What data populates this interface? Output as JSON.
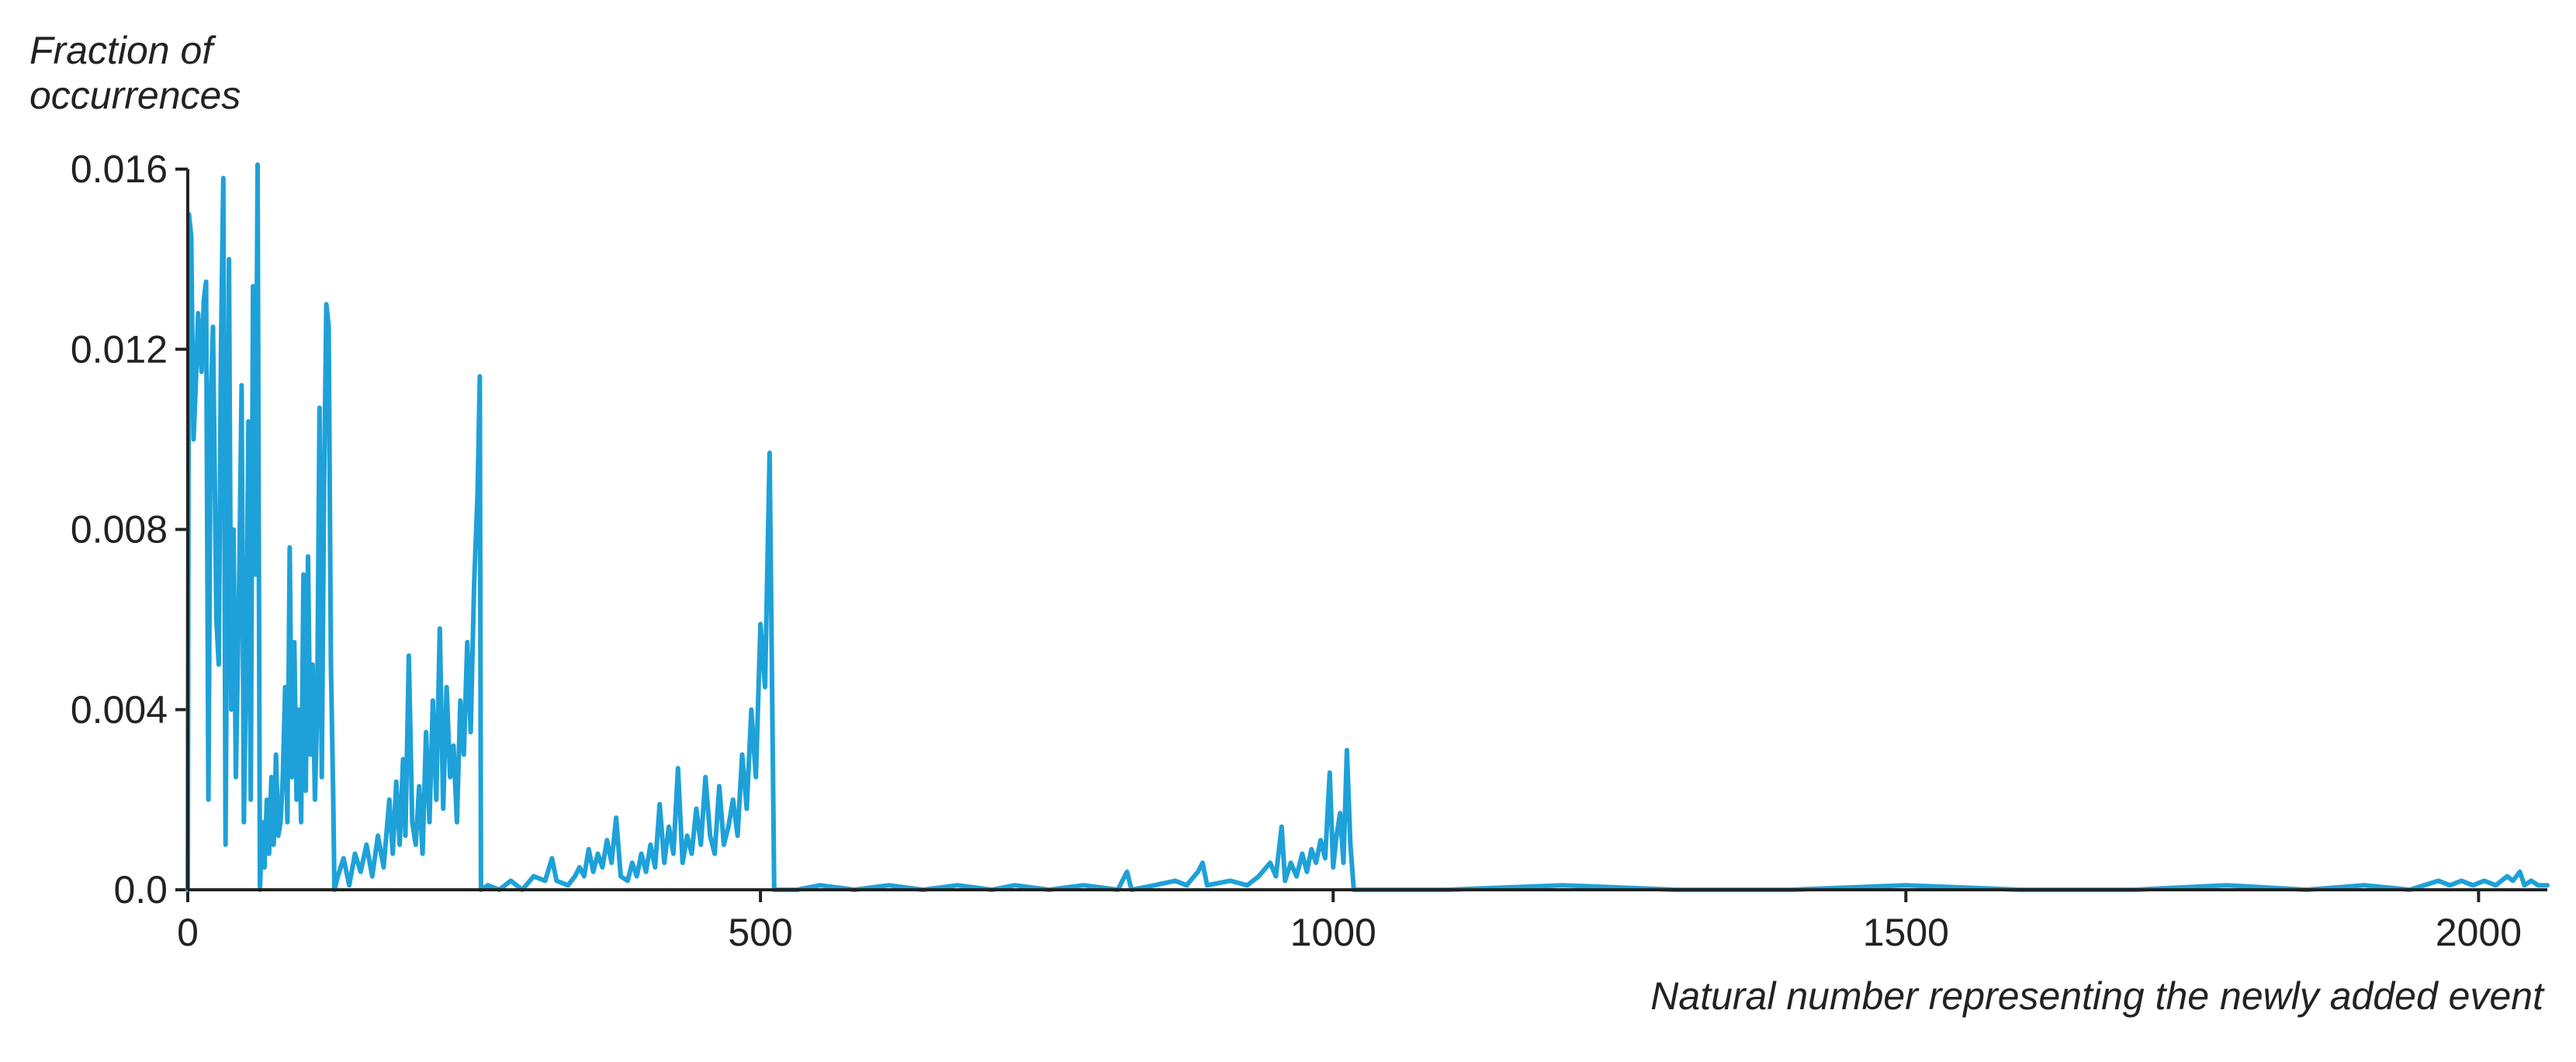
{
  "chart_data": {
    "type": "line",
    "title": "",
    "ylabel_lines": [
      "Fraction of",
      "occurrences"
    ],
    "xlabel": "Natural number representing the newly added event",
    "xlim": [
      0,
      2060
    ],
    "ylim": [
      0,
      0.016
    ],
    "xticks": [
      0,
      500,
      1000,
      1500,
      2000
    ],
    "xtick_labels": [
      "0",
      "500",
      "1000",
      "1500",
      "2000"
    ],
    "yticks": [
      0,
      0.004,
      0.008,
      0.012,
      0.016
    ],
    "ytick_labels": [
      "0.0",
      "0.004",
      "0.008",
      "0.012",
      "0.016"
    ],
    "grid": false,
    "legend": "none",
    "colors": {
      "series": "#1ea1d8",
      "axis": "#222222"
    },
    "series": [
      {
        "name": "",
        "points": [
          [
            0,
            0.0
          ],
          [
            1,
            0.015
          ],
          [
            3,
            0.0145
          ],
          [
            5,
            0.01
          ],
          [
            7,
            0.0112
          ],
          [
            9,
            0.0128
          ],
          [
            12,
            0.0115
          ],
          [
            14,
            0.0131
          ],
          [
            16,
            0.0135
          ],
          [
            18,
            0.002
          ],
          [
            20,
            0.0108
          ],
          [
            22,
            0.0125
          ],
          [
            25,
            0.006
          ],
          [
            27,
            0.005
          ],
          [
            29,
            0.012
          ],
          [
            31,
            0.0158
          ],
          [
            33,
            0.001
          ],
          [
            36,
            0.014
          ],
          [
            38,
            0.004
          ],
          [
            40,
            0.008
          ],
          [
            42,
            0.0025
          ],
          [
            45,
            0.007
          ],
          [
            47,
            0.0112
          ],
          [
            49,
            0.0015
          ],
          [
            51,
            0.005
          ],
          [
            53,
            0.0104
          ],
          [
            55,
            0.002
          ],
          [
            57,
            0.0134
          ],
          [
            59,
            0.007
          ],
          [
            61,
            0.0161
          ],
          [
            63,
            0.0
          ],
          [
            65,
            0.0015
          ],
          [
            67,
            0.0005
          ],
          [
            69,
            0.002
          ],
          [
            71,
            0.0008
          ],
          [
            73,
            0.0025
          ],
          [
            75,
            0.001
          ],
          [
            77,
            0.003
          ],
          [
            79,
            0.0012
          ],
          [
            81,
            0.0015
          ],
          [
            83,
            0.0025
          ],
          [
            85,
            0.0045
          ],
          [
            87,
            0.0015
          ],
          [
            89,
            0.0076
          ],
          [
            91,
            0.0025
          ],
          [
            93,
            0.0055
          ],
          [
            95,
            0.002
          ],
          [
            97,
            0.004
          ],
          [
            99,
            0.0015
          ],
          [
            101,
            0.007
          ],
          [
            103,
            0.0022
          ],
          [
            105,
            0.0074
          ],
          [
            107,
            0.003
          ],
          [
            109,
            0.005
          ],
          [
            111,
            0.002
          ],
          [
            113,
            0.004
          ],
          [
            115,
            0.0107
          ],
          [
            117,
            0.0025
          ],
          [
            119,
            0.009
          ],
          [
            121,
            0.013
          ],
          [
            123,
            0.0125
          ],
          [
            125,
            0.005
          ],
          [
            127,
            0.002
          ],
          [
            128,
            0.0
          ],
          [
            131,
            0.0003
          ],
          [
            136,
            0.0007
          ],
          [
            141,
            0.0001
          ],
          [
            146,
            0.0008
          ],
          [
            151,
            0.0004
          ],
          [
            156,
            0.001
          ],
          [
            161,
            0.0003
          ],
          [
            166,
            0.0012
          ],
          [
            171,
            0.0005
          ],
          [
            176,
            0.002
          ],
          [
            179,
            0.0008
          ],
          [
            182,
            0.0024
          ],
          [
            185,
            0.001
          ],
          [
            188,
            0.0029
          ],
          [
            190,
            0.0012
          ],
          [
            193,
            0.0052
          ],
          [
            196,
            0.0015
          ],
          [
            199,
            0.001
          ],
          [
            202,
            0.0023
          ],
          [
            205,
            0.0008
          ],
          [
            208,
            0.0035
          ],
          [
            211,
            0.0015
          ],
          [
            214,
            0.0042
          ],
          [
            217,
            0.002
          ],
          [
            220,
            0.0058
          ],
          [
            223,
            0.0018
          ],
          [
            226,
            0.0045
          ],
          [
            229,
            0.0025
          ],
          [
            232,
            0.0032
          ],
          [
            235,
            0.0015
          ],
          [
            238,
            0.0042
          ],
          [
            241,
            0.003
          ],
          [
            244,
            0.0055
          ],
          [
            247,
            0.0035
          ],
          [
            250,
            0.0068
          ],
          [
            253,
            0.0088
          ],
          [
            255,
            0.0114
          ],
          [
            256,
            0.0
          ],
          [
            262,
            0.0001
          ],
          [
            272,
            0.0
          ],
          [
            282,
            0.0002
          ],
          [
            292,
            0.0
          ],
          [
            302,
            0.0003
          ],
          [
            312,
            0.0002
          ],
          [
            318,
            0.0007
          ],
          [
            322,
            0.0002
          ],
          [
            332,
            0.0001
          ],
          [
            338,
            0.0003
          ],
          [
            342,
            0.0005
          ],
          [
            346,
            0.0003
          ],
          [
            350,
            0.0009
          ],
          [
            354,
            0.0004
          ],
          [
            358,
            0.0008
          ],
          [
            362,
            0.0005
          ],
          [
            366,
            0.0011
          ],
          [
            370,
            0.0006
          ],
          [
            374,
            0.0016
          ],
          [
            378,
            0.0003
          ],
          [
            384,
            0.0002
          ],
          [
            388,
            0.0006
          ],
          [
            392,
            0.0003
          ],
          [
            396,
            0.0008
          ],
          [
            400,
            0.0004
          ],
          [
            404,
            0.001
          ],
          [
            408,
            0.0005
          ],
          [
            412,
            0.0019
          ],
          [
            416,
            0.0006
          ],
          [
            420,
            0.0014
          ],
          [
            424,
            0.0008
          ],
          [
            428,
            0.0027
          ],
          [
            432,
            0.0006
          ],
          [
            436,
            0.0012
          ],
          [
            440,
            0.0008
          ],
          [
            444,
            0.0018
          ],
          [
            448,
            0.001
          ],
          [
            452,
            0.0025
          ],
          [
            456,
            0.0012
          ],
          [
            460,
            0.0008
          ],
          [
            464,
            0.0023
          ],
          [
            468,
            0.001
          ],
          [
            472,
            0.0014
          ],
          [
            476,
            0.002
          ],
          [
            480,
            0.0012
          ],
          [
            484,
            0.003
          ],
          [
            488,
            0.0018
          ],
          [
            492,
            0.004
          ],
          [
            496,
            0.0025
          ],
          [
            500,
            0.0059
          ],
          [
            504,
            0.0045
          ],
          [
            508,
            0.0097
          ],
          [
            512,
            0.0
          ],
          [
            532,
            0.0
          ],
          [
            552,
            0.0001
          ],
          [
            582,
            0.0
          ],
          [
            612,
            0.0001
          ],
          [
            642,
            0.0
          ],
          [
            672,
            0.0001
          ],
          [
            702,
            0.0
          ],
          [
            722,
            0.0001
          ],
          [
            752,
            0.0
          ],
          [
            782,
            0.0001
          ],
          [
            812,
            0.0
          ],
          [
            820,
            0.0004
          ],
          [
            824,
            0.0
          ],
          [
            844,
            0.0001
          ],
          [
            862,
            0.0002
          ],
          [
            872,
            0.0001
          ],
          [
            882,
            0.0004
          ],
          [
            886,
            0.0006
          ],
          [
            890,
            0.0001
          ],
          [
            910,
            0.0002
          ],
          [
            925,
            0.0001
          ],
          [
            935,
            0.0003
          ],
          [
            945,
            0.0006
          ],
          [
            950,
            0.0003
          ],
          [
            955,
            0.0014
          ],
          [
            958,
            0.0002
          ],
          [
            963,
            0.0006
          ],
          [
            968,
            0.0003
          ],
          [
            973,
            0.0008
          ],
          [
            977,
            0.0004
          ],
          [
            981,
            0.0009
          ],
          [
            985,
            0.0006
          ],
          [
            989,
            0.0011
          ],
          [
            993,
            0.0007
          ],
          [
            997,
            0.0026
          ],
          [
            1000,
            0.0005
          ],
          [
            1003,
            0.0012
          ],
          [
            1006,
            0.0017
          ],
          [
            1009,
            0.0006
          ],
          [
            1012,
            0.0031
          ],
          [
            1015,
            0.001
          ],
          [
            1018,
            0.0
          ],
          [
            1100,
            0.0
          ],
          [
            1200,
            0.0001
          ],
          [
            1300,
            0.0
          ],
          [
            1400,
            0.0
          ],
          [
            1500,
            0.0001
          ],
          [
            1600,
            0.0
          ],
          [
            1700,
            0.0
          ],
          [
            1780,
            0.0001
          ],
          [
            1850,
            0.0
          ],
          [
            1900,
            0.0001
          ],
          [
            1940,
            0.0
          ],
          [
            1965,
            0.0002
          ],
          [
            1975,
            0.0001
          ],
          [
            1985,
            0.0002
          ],
          [
            1995,
            0.0001
          ],
          [
            2005,
            0.0002
          ],
          [
            2015,
            0.0001
          ],
          [
            2025,
            0.0003
          ],
          [
            2030,
            0.0002
          ],
          [
            2036,
            0.0004
          ],
          [
            2040,
            0.0001
          ],
          [
            2046,
            0.0002
          ],
          [
            2052,
            0.0001
          ],
          [
            2060,
            0.0001
          ]
        ]
      }
    ]
  }
}
